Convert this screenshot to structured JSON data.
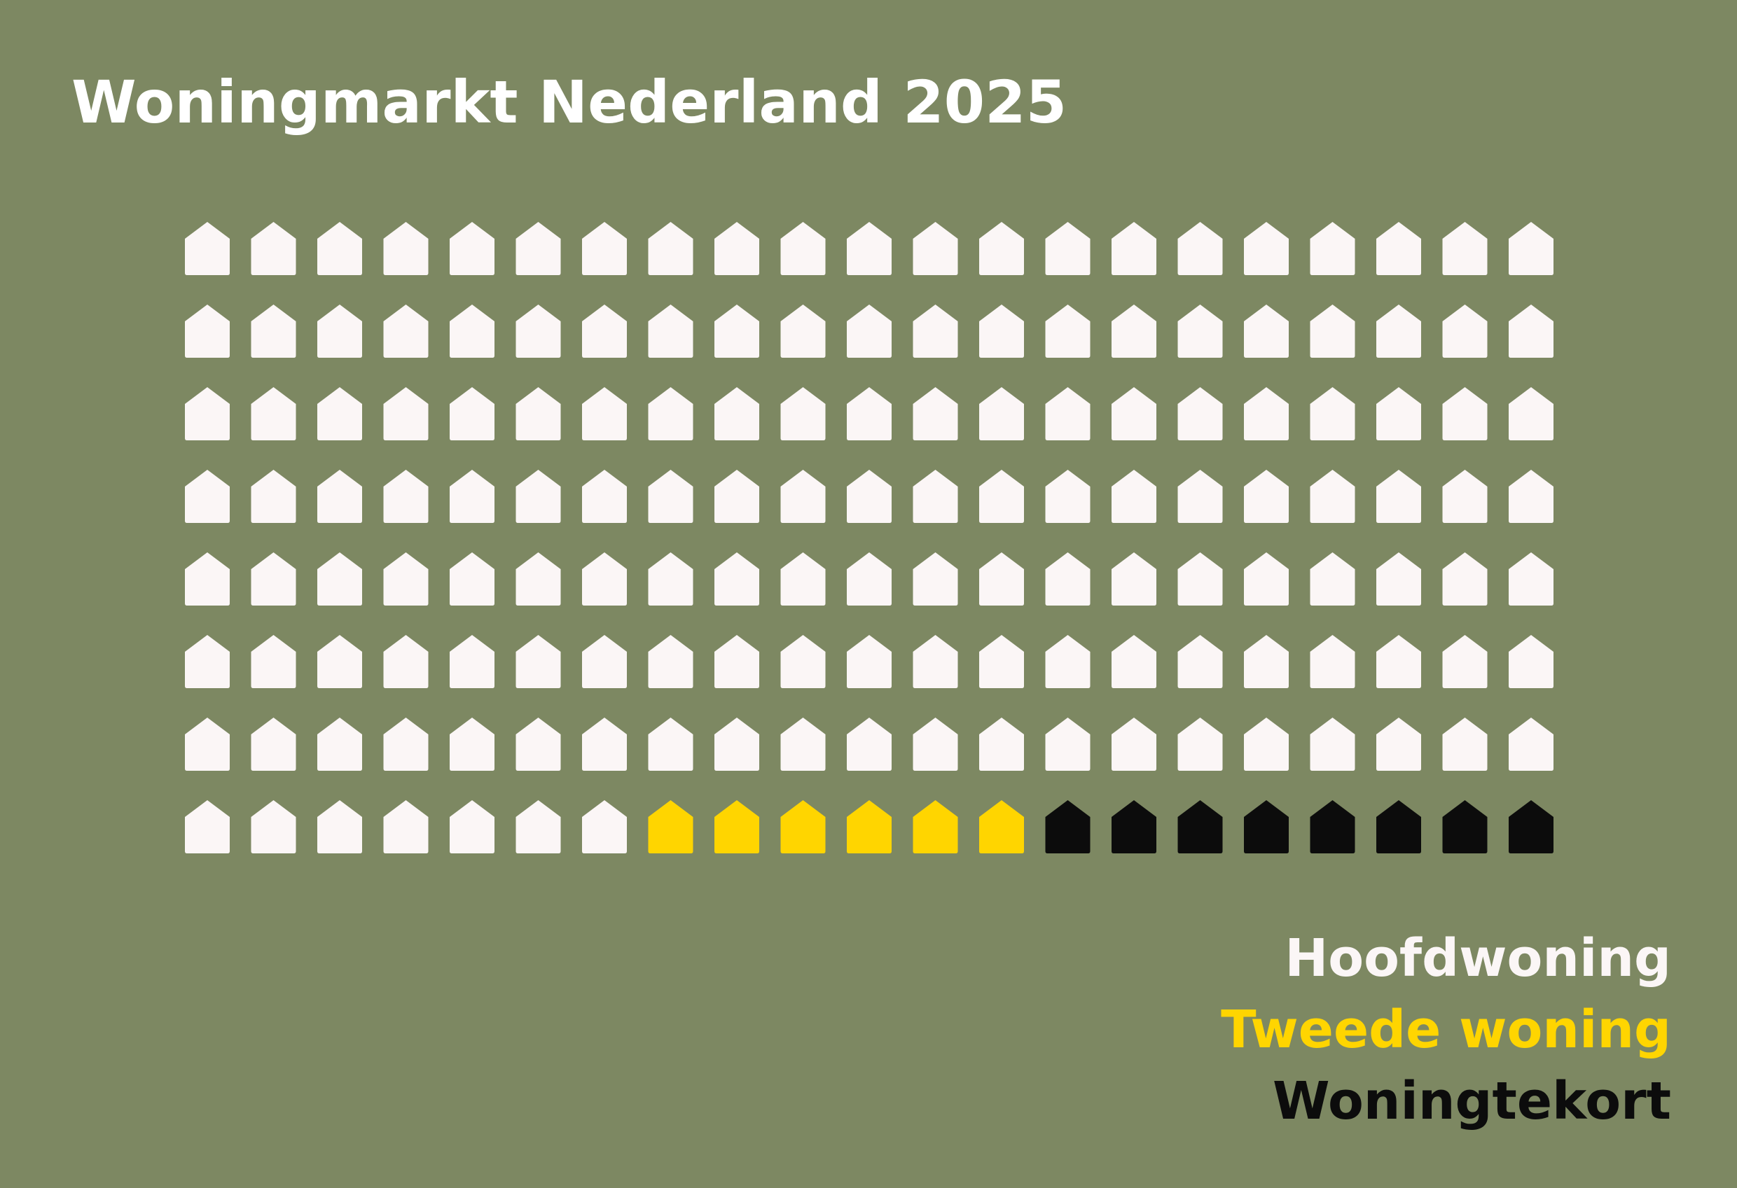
{
  "page": {
    "title": "Woningmarkt Nederland 2025",
    "background_color": "#7d8862"
  },
  "chart_data": {
    "type": "pictogram",
    "title": "Woningmarkt Nederland 2025",
    "layout": {
      "rows": 8,
      "columns": 21
    },
    "series": [
      {
        "name": "Hoofdwoning",
        "count": 154,
        "color": "#fbf6f6"
      },
      {
        "name": "Tweede woning",
        "count": 6,
        "color": "#ffd500"
      },
      {
        "name": "Woningtekort",
        "count": 8,
        "color": "#0c0c0c"
      }
    ],
    "legend_position": "bottom-right",
    "icon": "house-icon"
  }
}
